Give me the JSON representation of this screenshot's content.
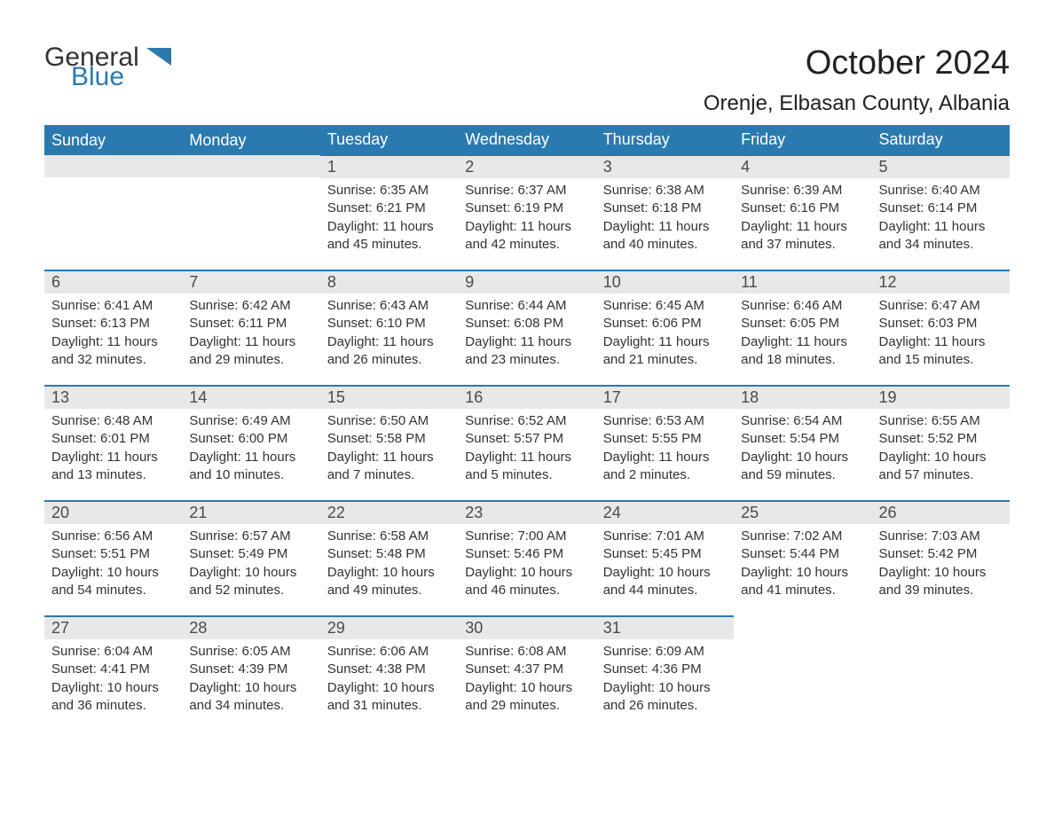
{
  "logo": {
    "text1": "General",
    "text2": "Blue",
    "icon_color": "#2a7ab0"
  },
  "header": {
    "month_title": "October 2024",
    "location": "Orenje, Elbasan County, Albania"
  },
  "styling": {
    "header_bg": "#2a7ab0",
    "header_text": "#ffffff",
    "daynum_bg": "#e8e8e8",
    "daynum_text": "#4a4a4a",
    "body_text": "#333333",
    "row_border": "#2a7ab0",
    "page_bg": "#ffffff",
    "font_family": "Arial",
    "month_title_fontsize": 38,
    "location_fontsize": 24,
    "dayheader_fontsize": 18,
    "daynum_fontsize": 18,
    "content_fontsize": 15
  },
  "day_headers": [
    "Sunday",
    "Monday",
    "Tuesday",
    "Wednesday",
    "Thursday",
    "Friday",
    "Saturday"
  ],
  "weeks": [
    [
      {
        "empty": true
      },
      {
        "empty": true
      },
      {
        "day": "1",
        "sunrise": "Sunrise: 6:35 AM",
        "sunset": "Sunset: 6:21 PM",
        "daylight1": "Daylight: 11 hours",
        "daylight2": "and 45 minutes."
      },
      {
        "day": "2",
        "sunrise": "Sunrise: 6:37 AM",
        "sunset": "Sunset: 6:19 PM",
        "daylight1": "Daylight: 11 hours",
        "daylight2": "and 42 minutes."
      },
      {
        "day": "3",
        "sunrise": "Sunrise: 6:38 AM",
        "sunset": "Sunset: 6:18 PM",
        "daylight1": "Daylight: 11 hours",
        "daylight2": "and 40 minutes."
      },
      {
        "day": "4",
        "sunrise": "Sunrise: 6:39 AM",
        "sunset": "Sunset: 6:16 PM",
        "daylight1": "Daylight: 11 hours",
        "daylight2": "and 37 minutes."
      },
      {
        "day": "5",
        "sunrise": "Sunrise: 6:40 AM",
        "sunset": "Sunset: 6:14 PM",
        "daylight1": "Daylight: 11 hours",
        "daylight2": "and 34 minutes."
      }
    ],
    [
      {
        "day": "6",
        "sunrise": "Sunrise: 6:41 AM",
        "sunset": "Sunset: 6:13 PM",
        "daylight1": "Daylight: 11 hours",
        "daylight2": "and 32 minutes."
      },
      {
        "day": "7",
        "sunrise": "Sunrise: 6:42 AM",
        "sunset": "Sunset: 6:11 PM",
        "daylight1": "Daylight: 11 hours",
        "daylight2": "and 29 minutes."
      },
      {
        "day": "8",
        "sunrise": "Sunrise: 6:43 AM",
        "sunset": "Sunset: 6:10 PM",
        "daylight1": "Daylight: 11 hours",
        "daylight2": "and 26 minutes."
      },
      {
        "day": "9",
        "sunrise": "Sunrise: 6:44 AM",
        "sunset": "Sunset: 6:08 PM",
        "daylight1": "Daylight: 11 hours",
        "daylight2": "and 23 minutes."
      },
      {
        "day": "10",
        "sunrise": "Sunrise: 6:45 AM",
        "sunset": "Sunset: 6:06 PM",
        "daylight1": "Daylight: 11 hours",
        "daylight2": "and 21 minutes."
      },
      {
        "day": "11",
        "sunrise": "Sunrise: 6:46 AM",
        "sunset": "Sunset: 6:05 PM",
        "daylight1": "Daylight: 11 hours",
        "daylight2": "and 18 minutes."
      },
      {
        "day": "12",
        "sunrise": "Sunrise: 6:47 AM",
        "sunset": "Sunset: 6:03 PM",
        "daylight1": "Daylight: 11 hours",
        "daylight2": "and 15 minutes."
      }
    ],
    [
      {
        "day": "13",
        "sunrise": "Sunrise: 6:48 AM",
        "sunset": "Sunset: 6:01 PM",
        "daylight1": "Daylight: 11 hours",
        "daylight2": "and 13 minutes."
      },
      {
        "day": "14",
        "sunrise": "Sunrise: 6:49 AM",
        "sunset": "Sunset: 6:00 PM",
        "daylight1": "Daylight: 11 hours",
        "daylight2": "and 10 minutes."
      },
      {
        "day": "15",
        "sunrise": "Sunrise: 6:50 AM",
        "sunset": "Sunset: 5:58 PM",
        "daylight1": "Daylight: 11 hours",
        "daylight2": "and 7 minutes."
      },
      {
        "day": "16",
        "sunrise": "Sunrise: 6:52 AM",
        "sunset": "Sunset: 5:57 PM",
        "daylight1": "Daylight: 11 hours",
        "daylight2": "and 5 minutes."
      },
      {
        "day": "17",
        "sunrise": "Sunrise: 6:53 AM",
        "sunset": "Sunset: 5:55 PM",
        "daylight1": "Daylight: 11 hours",
        "daylight2": "and 2 minutes."
      },
      {
        "day": "18",
        "sunrise": "Sunrise: 6:54 AM",
        "sunset": "Sunset: 5:54 PM",
        "daylight1": "Daylight: 10 hours",
        "daylight2": "and 59 minutes."
      },
      {
        "day": "19",
        "sunrise": "Sunrise: 6:55 AM",
        "sunset": "Sunset: 5:52 PM",
        "daylight1": "Daylight: 10 hours",
        "daylight2": "and 57 minutes."
      }
    ],
    [
      {
        "day": "20",
        "sunrise": "Sunrise: 6:56 AM",
        "sunset": "Sunset: 5:51 PM",
        "daylight1": "Daylight: 10 hours",
        "daylight2": "and 54 minutes."
      },
      {
        "day": "21",
        "sunrise": "Sunrise: 6:57 AM",
        "sunset": "Sunset: 5:49 PM",
        "daylight1": "Daylight: 10 hours",
        "daylight2": "and 52 minutes."
      },
      {
        "day": "22",
        "sunrise": "Sunrise: 6:58 AM",
        "sunset": "Sunset: 5:48 PM",
        "daylight1": "Daylight: 10 hours",
        "daylight2": "and 49 minutes."
      },
      {
        "day": "23",
        "sunrise": "Sunrise: 7:00 AM",
        "sunset": "Sunset: 5:46 PM",
        "daylight1": "Daylight: 10 hours",
        "daylight2": "and 46 minutes."
      },
      {
        "day": "24",
        "sunrise": "Sunrise: 7:01 AM",
        "sunset": "Sunset: 5:45 PM",
        "daylight1": "Daylight: 10 hours",
        "daylight2": "and 44 minutes."
      },
      {
        "day": "25",
        "sunrise": "Sunrise: 7:02 AM",
        "sunset": "Sunset: 5:44 PM",
        "daylight1": "Daylight: 10 hours",
        "daylight2": "and 41 minutes."
      },
      {
        "day": "26",
        "sunrise": "Sunrise: 7:03 AM",
        "sunset": "Sunset: 5:42 PM",
        "daylight1": "Daylight: 10 hours",
        "daylight2": "and 39 minutes."
      }
    ],
    [
      {
        "day": "27",
        "sunrise": "Sunrise: 6:04 AM",
        "sunset": "Sunset: 4:41 PM",
        "daylight1": "Daylight: 10 hours",
        "daylight2": "and 36 minutes."
      },
      {
        "day": "28",
        "sunrise": "Sunrise: 6:05 AM",
        "sunset": "Sunset: 4:39 PM",
        "daylight1": "Daylight: 10 hours",
        "daylight2": "and 34 minutes."
      },
      {
        "day": "29",
        "sunrise": "Sunrise: 6:06 AM",
        "sunset": "Sunset: 4:38 PM",
        "daylight1": "Daylight: 10 hours",
        "daylight2": "and 31 minutes."
      },
      {
        "day": "30",
        "sunrise": "Sunrise: 6:08 AM",
        "sunset": "Sunset: 4:37 PM",
        "daylight1": "Daylight: 10 hours",
        "daylight2": "and 29 minutes."
      },
      {
        "day": "31",
        "sunrise": "Sunrise: 6:09 AM",
        "sunset": "Sunset: 4:36 PM",
        "daylight1": "Daylight: 10 hours",
        "daylight2": "and 26 minutes."
      },
      {
        "empty": true
      },
      {
        "empty": true
      }
    ]
  ]
}
